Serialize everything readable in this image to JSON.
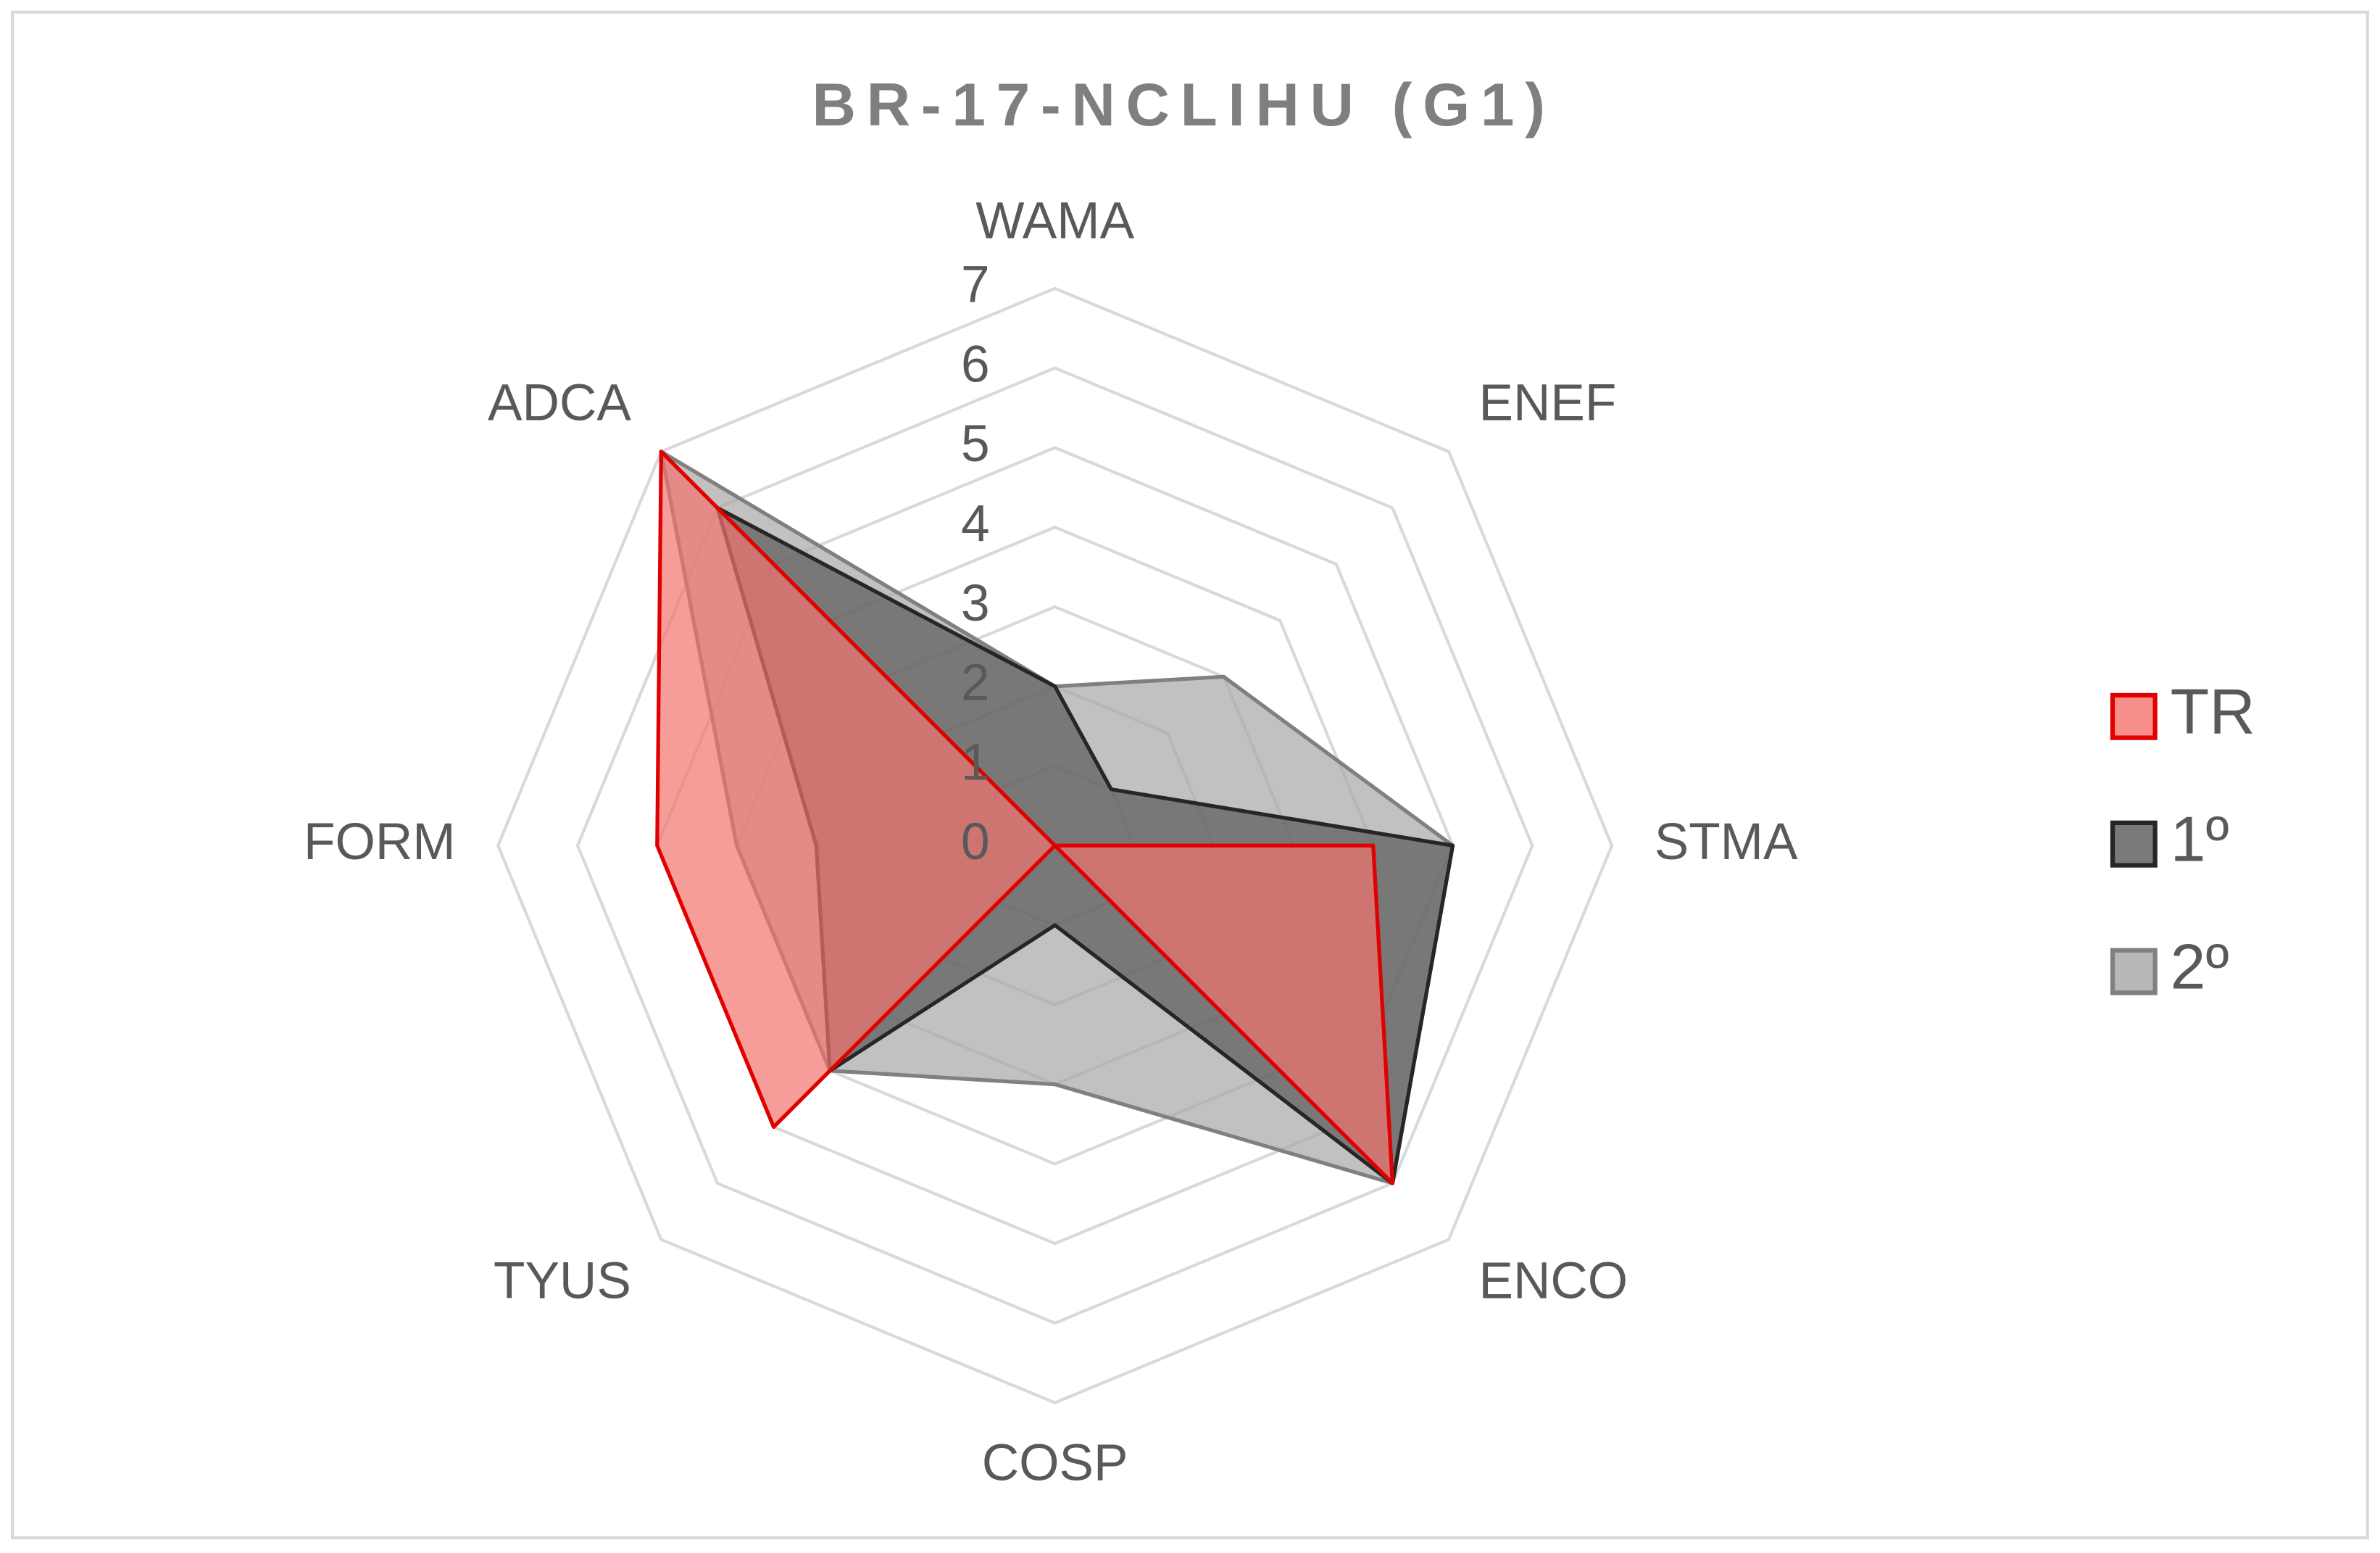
{
  "chart_data": {
    "type": "radar",
    "title": "BR-17-NCLIHU  (G1)",
    "categories": [
      "WAMA",
      "ENEF",
      "STMA",
      "ENCO",
      "COSP",
      "TYUS",
      "FORM",
      "ADCA"
    ],
    "series": [
      {
        "name": "2º",
        "color": "#a6a6a6",
        "stroke": "#808080",
        "values": [
          2,
          3,
          5,
          6,
          3,
          4,
          4,
          7
        ]
      },
      {
        "name": "1º",
        "color": "#595959",
        "stroke": "#262626",
        "values": [
          2,
          1,
          5,
          6,
          1,
          4,
          3,
          6
        ]
      },
      {
        "name": "TR",
        "color": "#f4736d",
        "stroke": "#e00000",
        "values": [
          0,
          0,
          4,
          6,
          0,
          5,
          5,
          7
        ]
      }
    ],
    "legend_order": [
      2,
      1,
      0
    ],
    "ylim": [
      0,
      7
    ],
    "yticks": [
      0,
      1,
      2,
      3,
      4,
      5,
      6,
      7
    ],
    "grid": true,
    "legend": "right"
  }
}
